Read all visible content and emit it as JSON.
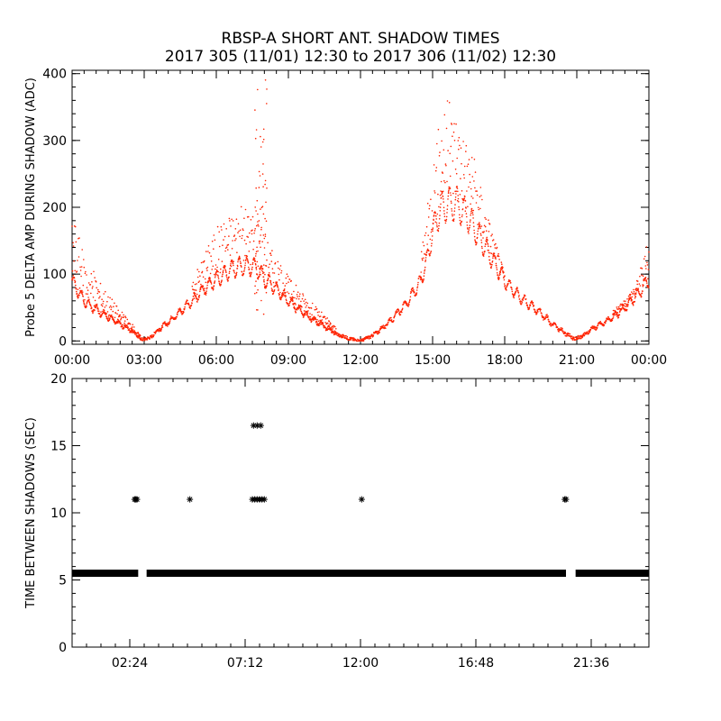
{
  "title": {
    "line1": "RBSP-A SHORT ANT. SHADOW TIMES",
    "line2": "2017 305 (11/01) 12:30 to 2017 306 (11/02) 12:30"
  },
  "colors": {
    "data_top": "#ff2200",
    "data_bottom": "#000000",
    "axes": "#000000"
  },
  "chart_data": [
    {
      "type": "scatter",
      "ylabel": "Probe 5 DELTA AMP DURING SHADOW (ADC)",
      "xlabel": "",
      "x_unit": "hours",
      "xlim": [
        0,
        24
      ],
      "ylim": [
        -5,
        405
      ],
      "x_tick_values": [
        0,
        3,
        6,
        9,
        12,
        15,
        18,
        21,
        24
      ],
      "x_tick_labels": [
        "00:00",
        "03:00",
        "06:00",
        "09:00",
        "12:00",
        "15:00",
        "18:00",
        "21:00",
        "00:00"
      ],
      "y_tick_values": [
        0,
        100,
        200,
        300,
        400
      ],
      "y_tick_labels": [
        "0",
        "100",
        "200",
        "300",
        "400"
      ],
      "series": [
        {
          "x": [
            0.0,
            0.25,
            0.5,
            0.75,
            1.0,
            1.5,
            2.0,
            2.5,
            2.9,
            3.25,
            3.5,
            4.0,
            4.5,
            5.0,
            5.5,
            6.0,
            6.5,
            7.0,
            7.5,
            7.8,
            8.0,
            8.5,
            9.0,
            9.5,
            10.0,
            10.5,
            11.0,
            11.6,
            12.0,
            12.5,
            13.0,
            13.5,
            14.0,
            14.5,
            14.8,
            15.0,
            15.3,
            15.6,
            16.0,
            16.4,
            16.8,
            17.2,
            17.6,
            18.0,
            18.5,
            19.0,
            19.5,
            20.0,
            20.5,
            20.9,
            21.3,
            21.6,
            22.0,
            22.5,
            23.0,
            23.5,
            24.0
          ],
          "y": [
            90,
            75,
            60,
            52,
            47,
            36,
            25,
            15,
            2,
            5,
            14,
            28,
            44,
            60,
            78,
            92,
            105,
            112,
            112,
            105,
            92,
            78,
            60,
            45,
            32,
            22,
            10,
            3,
            0,
            8,
            22,
            40,
            60,
            90,
            125,
            165,
            195,
            205,
            205,
            190,
            165,
            140,
            115,
            90,
            70,
            55,
            42,
            25,
            12,
            3,
            8,
            18,
            25,
            35,
            50,
            68,
            92
          ]
        },
        {
          "x": [
            0.0,
            0.25,
            0.5,
            1.0,
            1.5,
            2.0,
            2.5,
            2.9,
            5.0,
            5.5,
            6.0,
            6.5,
            7.0,
            7.5,
            7.8,
            8.0,
            8.5,
            9.0,
            9.5,
            10.0,
            10.5,
            11.0,
            14.5,
            14.8,
            15.0,
            15.3,
            15.6,
            16.0,
            16.4,
            16.8,
            17.2,
            17.6,
            18.0,
            22.5,
            23.0,
            23.5,
            24.0
          ],
          "y": [
            190,
            160,
            120,
            95,
            70,
            45,
            25,
            5,
            90,
            130,
            165,
            185,
            195,
            190,
            185,
            160,
            120,
            95,
            75,
            55,
            38,
            20,
            120,
            200,
            260,
            320,
            350,
            340,
            300,
            260,
            200,
            150,
            100,
            45,
            60,
            90,
            150
          ]
        }
      ]
    },
    {
      "type": "scatter",
      "ylabel": "TIME BETWEEN SHADOWS (SEC)",
      "xlabel": "",
      "x_unit": "hours",
      "xlim": [
        0,
        24
      ],
      "ylim": [
        0,
        20
      ],
      "x_tick_values": [
        2.4,
        7.2,
        12.0,
        16.8,
        21.6
      ],
      "x_tick_labels": [
        "02:24",
        "07:12",
        "12:00",
        "16:48",
        "21:36"
      ],
      "y_tick_values": [
        0,
        5,
        10,
        15,
        20
      ],
      "y_tick_labels": [
        "0",
        "5",
        "10",
        "15",
        "20"
      ],
      "series": [
        {
          "x_ranges": [
            [
              0.0,
              2.75
            ],
            [
              3.1,
              20.55
            ],
            [
              20.95,
              24.0
            ]
          ],
          "y": 5.5
        },
        {
          "x": [
            2.6,
            2.65,
            2.7,
            4.9,
            7.5,
            7.6,
            7.7,
            7.8,
            7.9,
            8.0,
            12.05,
            20.5,
            20.55
          ],
          "y": [
            11,
            11,
            11,
            11,
            11,
            11,
            11,
            11,
            11,
            11,
            11,
            11,
            11
          ]
        },
        {
          "x": [
            7.55,
            7.7,
            7.85
          ],
          "y": [
            16.5,
            16.5,
            16.5
          ]
        }
      ]
    }
  ]
}
